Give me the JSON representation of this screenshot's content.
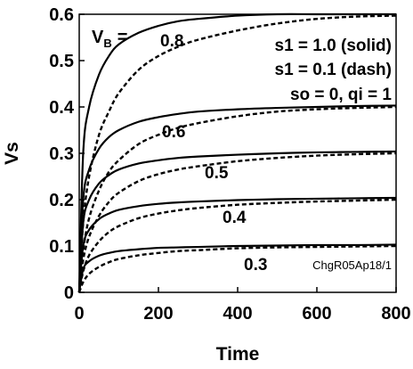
{
  "chart_data": {
    "type": "line",
    "xlabel": "Time",
    "ylabel": "Vs",
    "xlim": [
      0,
      800
    ],
    "ylim": [
      0,
      0.6
    ],
    "x_ticks": [
      "0",
      "200",
      "400",
      "600",
      "800"
    ],
    "y_ticks": [
      "0",
      "0.1",
      "0.2",
      "0.3",
      "0.4",
      "0.5",
      "0.6"
    ],
    "x": [
      0,
      10,
      25,
      50,
      75,
      100,
      150,
      200,
      250,
      300,
      400,
      500,
      600,
      700,
      800
    ],
    "series": [
      {
        "vb": 0.8,
        "line": "solid",
        "values": [
          0,
          0.3,
          0.4,
          0.47,
          0.51,
          0.535,
          0.56,
          0.575,
          0.585,
          0.59,
          0.597,
          0.6,
          0.6,
          0.6,
          0.6
        ]
      },
      {
        "vb": 0.8,
        "line": "dash",
        "values": [
          0,
          0.15,
          0.25,
          0.34,
          0.39,
          0.43,
          0.48,
          0.51,
          0.53,
          0.545,
          0.565,
          0.58,
          0.59,
          0.595,
          0.597
        ]
      },
      {
        "vb": 0.6,
        "line": "solid",
        "values": [
          0,
          0.2,
          0.265,
          0.31,
          0.335,
          0.35,
          0.368,
          0.378,
          0.385,
          0.39,
          0.395,
          0.398,
          0.4,
          0.402,
          0.403
        ]
      },
      {
        "vb": 0.6,
        "line": "dash",
        "values": [
          0,
          0.09,
          0.16,
          0.22,
          0.26,
          0.285,
          0.32,
          0.34,
          0.355,
          0.365,
          0.38,
          0.39,
          0.395,
          0.398,
          0.4
        ]
      },
      {
        "vb": 0.5,
        "line": "solid",
        "values": [
          0,
          0.15,
          0.2,
          0.235,
          0.253,
          0.265,
          0.278,
          0.285,
          0.29,
          0.293,
          0.297,
          0.3,
          0.302,
          0.303,
          0.304
        ]
      },
      {
        "vb": 0.5,
        "line": "dash",
        "values": [
          0,
          0.07,
          0.12,
          0.165,
          0.195,
          0.215,
          0.24,
          0.255,
          0.265,
          0.272,
          0.283,
          0.29,
          0.295,
          0.298,
          0.3
        ]
      },
      {
        "vb": 0.4,
        "line": "solid",
        "values": [
          0,
          0.1,
          0.135,
          0.158,
          0.17,
          0.178,
          0.186,
          0.191,
          0.194,
          0.196,
          0.199,
          0.201,
          0.202,
          0.203,
          0.204
        ]
      },
      {
        "vb": 0.4,
        "line": "dash",
        "values": [
          0,
          0.045,
          0.08,
          0.11,
          0.13,
          0.143,
          0.16,
          0.17,
          0.177,
          0.182,
          0.189,
          0.193,
          0.196,
          0.198,
          0.2
        ]
      },
      {
        "vb": 0.3,
        "line": "solid",
        "values": [
          0,
          0.05,
          0.067,
          0.079,
          0.085,
          0.089,
          0.093,
          0.096,
          0.097,
          0.098,
          0.1,
          0.101,
          0.102,
          0.102,
          0.103
        ]
      },
      {
        "vb": 0.3,
        "line": "dash",
        "values": [
          0,
          0.022,
          0.04,
          0.055,
          0.065,
          0.072,
          0.08,
          0.085,
          0.089,
          0.091,
          0.095,
          0.097,
          0.098,
          0.099,
          0.1
        ]
      }
    ],
    "curve_labels": [
      "0.8",
      "0.6",
      "0.5",
      "0.4",
      "0.3"
    ],
    "vb_label": "V",
    "vb_label_sub": "B",
    "vb_label_suffix": "=",
    "annotations": [
      "s1 = 1.0 (solid)",
      "s1 = 0.1 (dash)",
      "so = 0, qi = 1"
    ],
    "code_label": "ChgR05Ap18/1",
    "grid": false
  }
}
